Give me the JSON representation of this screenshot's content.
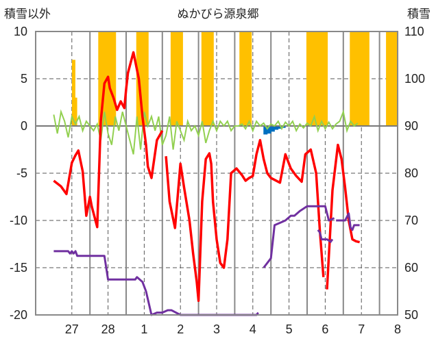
{
  "chart_data": {
    "type": "line",
    "title": "ぬかびら源泉郷",
    "ylabel_left": "積雪以外",
    "ylabel_right": "積雪",
    "ylim_left": [
      -20,
      10
    ],
    "ylim_right": [
      50,
      110
    ],
    "left_ticks": [
      "10",
      "5",
      "0",
      "-5",
      "-10",
      "-15",
      "-20"
    ],
    "right_ticks": [
      "110",
      "100",
      "90",
      "80",
      "70",
      "60",
      "50"
    ],
    "categories": [
      "27",
      "28",
      "1",
      "2",
      "3",
      "4",
      "5",
      "6",
      "7",
      "8"
    ],
    "colors": {
      "temperature": "#ff0000",
      "snow_depth": "#7030a0",
      "wind": "#92d050",
      "precip_snow": "#ffc000",
      "precip_rain": "#0070c0",
      "grid": "#555555"
    },
    "series": [
      {
        "key": "temperature",
        "axis": "left",
        "x": [
          -0.5,
          -0.3,
          -0.15,
          0,
          0.1,
          0.18,
          0.3,
          0.4,
          0.5,
          0.55,
          0.7,
          0.8,
          0.9,
          1.0,
          1.05,
          1.15,
          1.25,
          1.35,
          1.45,
          1.5,
          1.55,
          1.7,
          1.85,
          1.95,
          2.05,
          2.1,
          2.2,
          2.35,
          2.5,
          2.6,
          2.7,
          2.85,
          3.0,
          3.1,
          3.25,
          3.35,
          3.45,
          3.5,
          3.6,
          3.7,
          3.8,
          3.85,
          3.9,
          4.0,
          4.1,
          4.2,
          4.3,
          4.4,
          4.55,
          4.7,
          4.8,
          4.9,
          5.0,
          5.1,
          5.2,
          5.3,
          5.4,
          5.5,
          5.6,
          5.75,
          5.9,
          6.05,
          6.2,
          6.35,
          6.45,
          6.6,
          6.75,
          6.85,
          6.95,
          7.05,
          7.2,
          7.35,
          7.45,
          7.55,
          7.65,
          7.75,
          7.85,
          7.95
        ],
        "values": [
          -5.8,
          -6.4,
          -7.2,
          -3.9,
          -3.1,
          -2.6,
          -4.8,
          -9.5,
          -7.5,
          -8.5,
          -10.7,
          0.5,
          4.5,
          5.2,
          4.0,
          3.0,
          1.7,
          2.6,
          1.9,
          3.9,
          5.6,
          7.8,
          5.0,
          1.0,
          -2.0,
          -4.3,
          -5.5,
          -1.5,
          -0.5,
          -3.2,
          -8.0,
          -10.8,
          -4.0,
          -6.5,
          -10.0,
          -13.5,
          -16.5,
          -18.5,
          -8.0,
          -3.5,
          -2.9,
          -4.0,
          -8.0,
          -12.0,
          -14.5,
          -15.0,
          -12.0,
          -5.0,
          -4.5,
          -5.2,
          -5.8,
          -5.5,
          -5.3,
          -3.0,
          -1.5,
          -3.5,
          -5.0,
          -5.5,
          -5.7,
          -6.0,
          -3.0,
          -4.5,
          -5.3,
          -5.9,
          -3.0,
          -2.5,
          -5.0,
          -11.0,
          -16.0,
          -17.3,
          -6.8,
          -2.0,
          -3.5,
          -6.5,
          -10.0,
          -12.0,
          -12.2,
          -12.3
        ],
        "breaks_after_x": [
          2.5,
          6.95
        ]
      },
      {
        "key": "snow_depth",
        "axis": "right",
        "x": [
          -0.5,
          -0.1,
          -0.05,
          0,
          0.05,
          0.1,
          0.15,
          0.9,
          1.0,
          1.15,
          1.75,
          1.8,
          1.95,
          2.05,
          2.2,
          2.35,
          2.5,
          2.65,
          2.75,
          3.0,
          3.6,
          4.0,
          5.1,
          5.15,
          5.3,
          5.5,
          5.6,
          5.75,
          5.9,
          6.05,
          6.15,
          6.3,
          6.5,
          7.0,
          7.1,
          7.25,
          7.3,
          7.45,
          7.55,
          7.65,
          7.7,
          7.75,
          7.8,
          7.95
        ],
        "values": [
          63.5,
          63.5,
          63,
          63.5,
          63,
          63.5,
          62.5,
          62.5,
          57.5,
          57.5,
          57.5,
          58,
          57,
          55,
          50,
          50.5,
          50.5,
          51,
          51,
          50,
          50,
          50,
          50,
          50.5,
          60,
          62,
          69,
          69.5,
          70,
          71,
          71,
          72,
          73,
          73,
          70,
          70.5,
          70,
          70,
          70,
          71.5,
          68.5,
          68,
          69,
          69
        ],
        "breaks_after_x": [
          5.15,
          7.25
        ]
      }
    ],
    "snow_segments": [
      {
        "axis": "right",
        "x": [
          6.8,
          6.85,
          6.9,
          7.0,
          7.05,
          7.15,
          7.2
        ],
        "values": [
          68,
          67.5,
          66,
          66,
          66,
          65.5,
          66
        ]
      }
    ],
    "precip_snow_bars": [
      {
        "x": 0.05,
        "value": 7.0
      },
      {
        "x": 0.1,
        "value": 3.0
      },
      {
        "x": 0.9,
        "value": 10
      },
      {
        "x": 1.05,
        "value": 10
      },
      {
        "x": 1.95,
        "value": 10
      },
      {
        "x": 2.9,
        "value": 10
      },
      {
        "x": 3.75,
        "value": 10
      },
      {
        "x": 4.8,
        "value": 10
      },
      {
        "x": 6.65,
        "value": 10
      },
      {
        "x": 6.9,
        "value": 10
      },
      {
        "x": 7.85,
        "value": 10
      },
      {
        "x": 8.05,
        "value": 10
      },
      {
        "x": 7.95,
        "value": 4.0
      },
      {
        "x": 8.85,
        "value": 10
      }
    ],
    "precip_rain_bars": [
      {
        "x": 5.35,
        "value": -0.9
      },
      {
        "x": 5.45,
        "value": -0.8
      },
      {
        "x": 5.55,
        "value": -0.6
      },
      {
        "x": 5.65,
        "value": -0.4
      },
      {
        "x": 5.75,
        "value": -0.3
      },
      {
        "x": 5.85,
        "value": -0.2
      }
    ],
    "wind": {
      "axis": "left",
      "x": [
        -0.5,
        -0.4,
        -0.3,
        -0.2,
        -0.1,
        0,
        0.1,
        0.2,
        0.3,
        0.4,
        0.5,
        0.6,
        0.7,
        0.8,
        0.9,
        1.0,
        1.1,
        1.2,
        1.3,
        1.4,
        1.5,
        1.6,
        1.7,
        1.8,
        1.9,
        2.0,
        2.1,
        2.2,
        2.3,
        2.4,
        2.5,
        2.6,
        2.7,
        2.8,
        2.9,
        3.0,
        3.1,
        3.2,
        3.3,
        3.4,
        3.5,
        3.6,
        3.7,
        3.8,
        3.9,
        4.0,
        4.1,
        4.2,
        4.3,
        4.4,
        4.5,
        4.6,
        4.7,
        4.8,
        4.9,
        5.0,
        5.1,
        5.2,
        5.3,
        5.4,
        5.5,
        5.6,
        5.7,
        5.8,
        5.9,
        6.0,
        6.1,
        6.2,
        6.3,
        6.4,
        6.5,
        6.6,
        6.7,
        6.8,
        6.9,
        7.0,
        7.1,
        7.2,
        7.3,
        7.4,
        7.5,
        7.6,
        7.7,
        7.8,
        7.9
      ],
      "values": [
        1.2,
        -0.8,
        1.5,
        0.5,
        -1.2,
        1.0,
        0.2,
        1.0,
        -0.5,
        0.5,
        0.0,
        -0.5,
        0.2,
        -1.5,
        1.5,
        -0.8,
        -2.0,
        1.0,
        -0.5,
        1.5,
        0.0,
        -1.5,
        -3.0,
        1.0,
        -2.5,
        1.5,
        0.0,
        1.0,
        -0.5,
        1.0,
        -2.0,
        -1.0,
        1.0,
        -2.5,
        0.5,
        -0.5,
        -1.5,
        0.5,
        -0.5,
        0.0,
        -1.0,
        0.5,
        -1.8,
        -0.5,
        0.5,
        -0.5,
        0.5,
        0.0,
        0.5,
        -0.5,
        0.0,
        0.0,
        0.2,
        -0.3,
        0.5,
        -0.5,
        0.5,
        0.0,
        0.3,
        -0.3,
        0.2,
        0.0,
        0.5,
        -0.3,
        0.4,
        0.0,
        0.5,
        -0.5,
        0.2,
        -0.2,
        0.3,
        0.0,
        1.0,
        -0.5,
        0.5,
        -0.3,
        0.4,
        -0.3,
        0.2,
        0.5,
        1.5,
        -0.5,
        0.5,
        0.0,
        0.3
      ]
    }
  }
}
